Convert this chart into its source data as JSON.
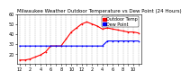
{
  "title": "Milwaukee Weather Outdoor Temperature vs Dew Point (24 Hours)",
  "temp_color": "#ff0000",
  "dew_color": "#0000ff",
  "legend_temp": "Outdoor Temp",
  "legend_dew": "Dew Point",
  "bg_color": "#ffffff",
  "plot_bg": "#ffffff",
  "grid_color": "#888888",
  "ylim": [
    10,
    60
  ],
  "ytick_vals": [
    20,
    30,
    40,
    50,
    60
  ],
  "hours": [
    0,
    1,
    2,
    3,
    4,
    5,
    6,
    7,
    8,
    9,
    10,
    11,
    12,
    13,
    14,
    15,
    16,
    17,
    18,
    19,
    20,
    21,
    22,
    23
  ],
  "temp_values": [
    14,
    14,
    15,
    17,
    19,
    22,
    28,
    28,
    28,
    35,
    42,
    46,
    50,
    52,
    50,
    48,
    45,
    46,
    45,
    44,
    43,
    42,
    42,
    41
  ],
  "dew_values": [
    28,
    28,
    28,
    28,
    28,
    28,
    28,
    28,
    28,
    28,
    28,
    28,
    28,
    28,
    28,
    28,
    28,
    33,
    33,
    33,
    33,
    33,
    33,
    33
  ],
  "title_fontsize": 4.0,
  "tick_fontsize": 3.5,
  "legend_fontsize": 3.5,
  "linewidth": 0.8,
  "markersize": 1.2
}
